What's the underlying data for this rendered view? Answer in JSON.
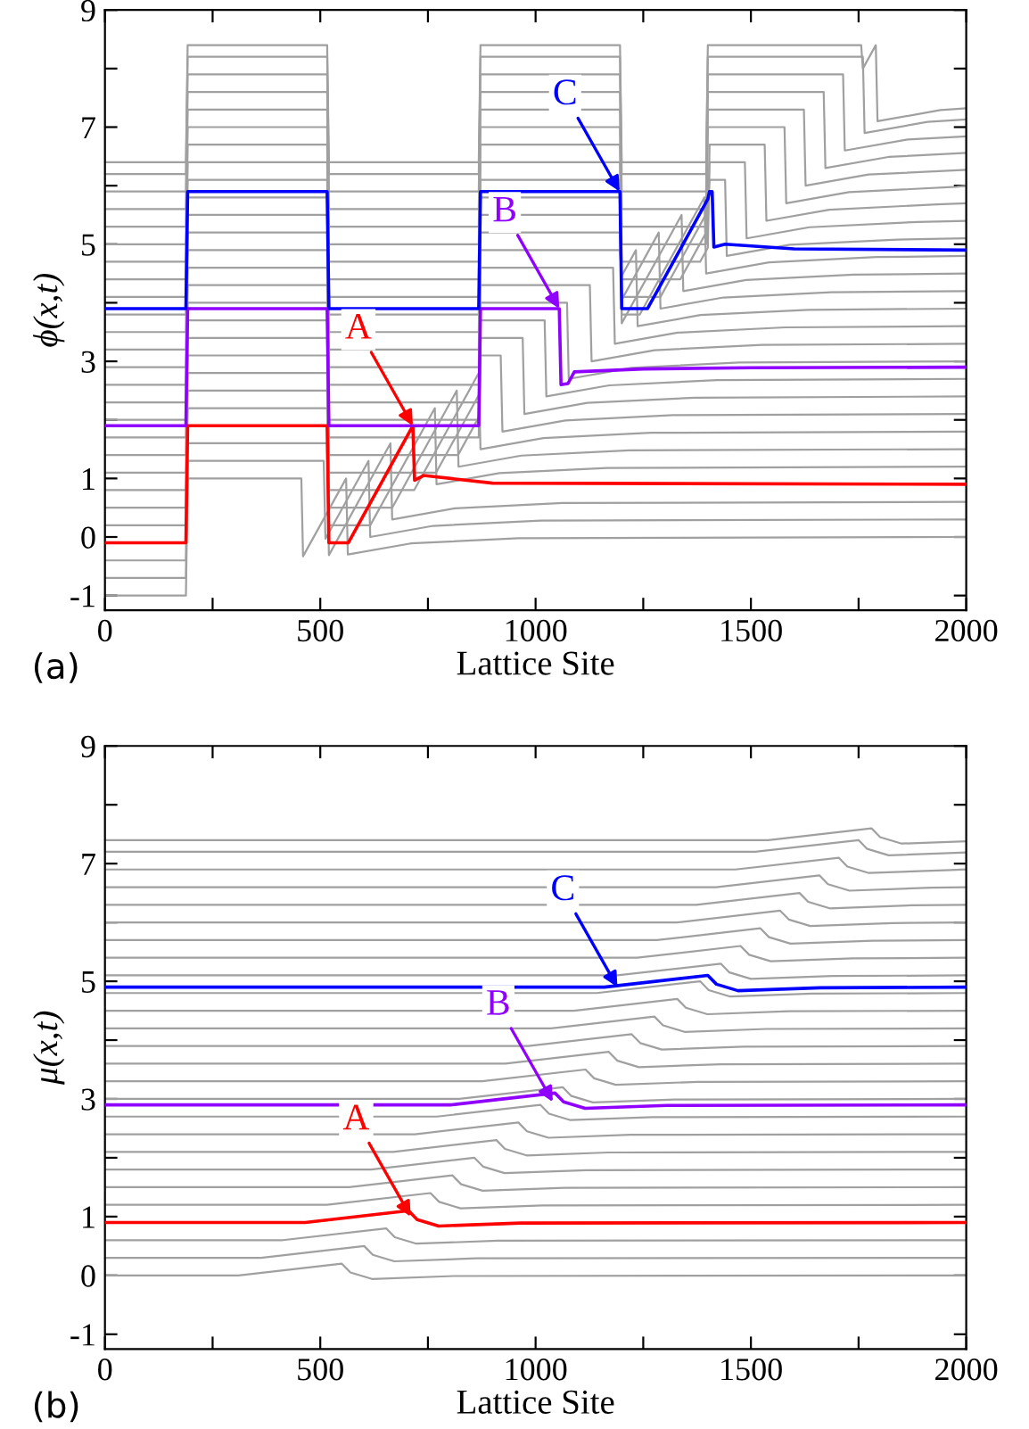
{
  "chart_data": [
    {
      "type": "line",
      "xlabel": "Lattice Site",
      "ylabel": "ϕ(x,t)",
      "xlim": [
        0,
        2000
      ],
      "ylim": [
        -1.25,
        9
      ],
      "xticks": [
        0,
        {
          "value": 250,
          "label": null
        },
        500,
        {
          "value": 750,
          "label": null
        },
        1000,
        {
          "value": 1250,
          "label": null
        },
        1500,
        {
          "value": 1750,
          "label": null
        },
        2000
      ],
      "yticks": [
        -1,
        0,
        1,
        {
          "value": 2,
          "label": null
        },
        3,
        {
          "value": 4,
          "label": null
        },
        5,
        {
          "value": 6,
          "label": null
        },
        7,
        {
          "value": 8,
          "label": null
        },
        9
      ],
      "grid": false,
      "legend": false,
      "annotations": [
        {
          "text": "A",
          "x": 715,
          "y": 1.9
        },
        {
          "text": "B",
          "x": 1055,
          "y": 3.9
        },
        {
          "text": "C",
          "x": 1195,
          "y": 5.9
        },
        "(a)"
      ],
      "series": [
        {
          "color": "#a0a0a0",
          "x": [
            0,
            188,
            192,
            456,
            460,
            560,
            564,
            710,
            960,
            2000
          ],
          "values": [
            -1,
            -1,
            1,
            1,
            -0.33,
            1,
            -0.3,
            -0.11,
            -0.02,
            0
          ]
        },
        {
          "color": "#a0a0a0",
          "x": [
            0,
            188,
            192,
            508,
            512,
            612,
            616,
            762,
            1012,
            2000
          ],
          "values": [
            -0.7,
            -0.7,
            1.3,
            1.3,
            -0.03,
            1.3,
            0,
            0.19,
            0.28,
            0.3
          ]
        },
        {
          "color": "#a0a0a0",
          "x": [
            0,
            188,
            192,
            516,
            520,
            663,
            667,
            813,
            1063,
            2000
          ],
          "values": [
            -0.4,
            -0.4,
            1.6,
            1.6,
            -0.31,
            1.6,
            0.3,
            0.49,
            0.58,
            0.6
          ]
        },
        {
          "color": "#a0a0a0",
          "x": [
            0,
            188,
            192,
            516,
            520,
            616,
            766,
            770,
            916,
            1166,
            2000
          ],
          "values": [
            0.2,
            0.2,
            2.2,
            2.2,
            0.2,
            0.2,
            2.2,
            0.9,
            1.09,
            1.18,
            1.2
          ]
        },
        {
          "color": "#a0a0a0",
          "x": [
            0,
            188,
            192,
            516,
            520,
            667,
            817,
            821,
            967,
            1217,
            2000
          ],
          "values": [
            0.5,
            0.5,
            2.5,
            2.5,
            0.5,
            0.5,
            2.5,
            1.2,
            1.39,
            1.48,
            1.5
          ]
        },
        {
          "color": "#a0a0a0",
          "x": [
            0,
            188,
            192,
            516,
            520,
            718,
            868,
            872,
            1018,
            1268,
            2000
          ],
          "values": [
            0.8,
            0.8,
            2.8,
            2.8,
            0.8,
            0.8,
            2.8,
            1.5,
            1.69,
            1.78,
            1.8
          ]
        },
        {
          "color": "#a0a0a0",
          "x": [
            0,
            188,
            192,
            516,
            520,
            769,
            870,
            872,
            919,
            923,
            1069,
            1319,
            2000
          ],
          "values": [
            1.1,
            1.1,
            3.1,
            3.1,
            1.1,
            1.1,
            2.45,
            3.1,
            3.1,
            1.8,
            1.99,
            2.08,
            2.1
          ]
        },
        {
          "color": "#a0a0a0",
          "x": [
            0,
            188,
            192,
            516,
            520,
            820,
            870,
            872,
            970,
            974,
            1120,
            1370,
            2000
          ],
          "values": [
            1.4,
            1.4,
            3.4,
            3.4,
            1.4,
            1.4,
            2.07,
            3.4,
            3.4,
            2.1,
            2.29,
            2.38,
            2.4
          ]
        },
        {
          "color": "#a0a0a0",
          "x": [
            0,
            188,
            192,
            516,
            520,
            868,
            872,
            1021,
            1025,
            1171,
            1421,
            2000
          ],
          "values": [
            1.7,
            1.7,
            3.7,
            3.7,
            1.7,
            1.7,
            3.7,
            3.7,
            2.4,
            2.59,
            2.68,
            2.7
          ]
        },
        {
          "color": "#a0a0a0",
          "x": [
            0,
            188,
            192,
            516,
            520,
            868,
            872,
            1073,
            1077,
            1223,
            1473,
            2000
          ],
          "values": [
            2,
            2,
            4,
            4,
            2,
            2,
            4,
            4,
            2.7,
            2.89,
            2.98,
            3
          ]
        },
        {
          "color": "#a0a0a0",
          "x": [
            0,
            188,
            192,
            516,
            520,
            868,
            872,
            1126,
            1130,
            1276,
            1526,
            2000
          ],
          "values": [
            2.3,
            2.3,
            4.3,
            4.3,
            2.3,
            2.3,
            4.3,
            4.3,
            3.0,
            3.19,
            3.28,
            3.3
          ]
        },
        {
          "color": "#a0a0a0",
          "x": [
            0,
            188,
            192,
            516,
            520,
            868,
            872,
            1180,
            1184,
            1330,
            1580,
            2000
          ],
          "values": [
            2.6,
            2.6,
            4.6,
            4.6,
            2.6,
            2.6,
            4.6,
            4.6,
            3.3,
            3.49,
            3.58,
            3.6
          ]
        },
        {
          "color": "#a0a0a0",
          "x": [
            0,
            188,
            192,
            516,
            520,
            868,
            872,
            1196,
            1200,
            1233,
            1237,
            1383,
            1633,
            2000
          ],
          "values": [
            2.9,
            2.9,
            4.9,
            4.9,
            2.9,
            2.9,
            4.9,
            4.9,
            4.46,
            4.9,
            3.6,
            3.79,
            3.88,
            3.9
          ]
        },
        {
          "color": "#a0a0a0",
          "x": [
            0,
            188,
            192,
            516,
            520,
            868,
            872,
            1196,
            1200,
            1286,
            1290,
            1436,
            1686,
            2000
          ],
          "values": [
            3.2,
            3.2,
            5.2,
            5.2,
            3.2,
            3.2,
            5.2,
            5.2,
            4.05,
            5.2,
            3.9,
            4.09,
            4.18,
            4.2
          ]
        },
        {
          "color": "#a0a0a0",
          "x": [
            0,
            188,
            192,
            516,
            520,
            868,
            872,
            1196,
            1200,
            1339,
            1343,
            1489,
            1739,
            2000
          ],
          "values": [
            3.5,
            3.5,
            5.5,
            5.5,
            3.5,
            3.5,
            5.5,
            5.5,
            3.65,
            5.5,
            4.2,
            4.39,
            4.48,
            4.5
          ]
        },
        {
          "color": "#a0a0a0",
          "x": [
            0,
            188,
            192,
            516,
            520,
            868,
            872,
            1196,
            1200,
            1242,
            1392,
            1396,
            1542,
            1792,
            2000
          ],
          "values": [
            3.8,
            3.8,
            5.8,
            5.8,
            3.8,
            3.8,
            5.8,
            5.8,
            3.8,
            3.8,
            5.8,
            4.5,
            4.69,
            4.78,
            4.8
          ]
        },
        {
          "color": "#a0a0a0",
          "x": [
            0,
            188,
            192,
            516,
            520,
            868,
            872,
            1196,
            1200,
            1290,
            1400,
            1404,
            1440,
            1444,
            1590,
            1840,
            2000
          ],
          "values": [
            4.1,
            4.1,
            6.1,
            6.1,
            4.1,
            4.1,
            6.1,
            6.1,
            4.1,
            4.1,
            5.57,
            6.1,
            6.1,
            4.8,
            4.99,
            5.08,
            5.1
          ]
        },
        {
          "color": "#a0a0a0",
          "x": [
            0,
            188,
            192,
            516,
            520,
            868,
            872,
            1196,
            1200,
            1336,
            1400,
            1404,
            1486,
            1490,
            1636,
            1886,
            2000
          ],
          "values": [
            4.4,
            4.4,
            6.4,
            6.4,
            4.4,
            4.4,
            6.4,
            6.4,
            4.4,
            4.4,
            5.25,
            6.4,
            6.4,
            5.1,
            5.29,
            5.38,
            5.4
          ]
        },
        {
          "color": "#a0a0a0",
          "x": [
            0,
            188,
            192,
            516,
            520,
            868,
            872,
            1196,
            1200,
            1382,
            1400,
            1404,
            1532,
            1536,
            1682,
            1932,
            2000
          ],
          "values": [
            4.7,
            4.7,
            6.7,
            6.7,
            4.7,
            4.7,
            6.7,
            6.7,
            4.7,
            4.7,
            4.94,
            6.7,
            6.7,
            5.4,
            5.59,
            5.68,
            5.7
          ]
        },
        {
          "color": "#a0a0a0",
          "x": [
            0,
            188,
            192,
            516,
            520,
            868,
            872,
            1196,
            1200,
            1396,
            1400,
            1578,
            1582,
            1728,
            1978,
            2000
          ],
          "values": [
            5,
            5,
            7,
            7,
            5,
            5,
            7,
            7,
            5,
            5,
            7,
            7,
            5.7,
            5.89,
            5.98,
            6
          ]
        },
        {
          "color": "#a0a0a0",
          "x": [
            0,
            188,
            192,
            516,
            520,
            868,
            872,
            1196,
            1200,
            1396,
            1400,
            1623,
            1627,
            1773,
            2000
          ],
          "values": [
            5.3,
            5.3,
            7.3,
            7.3,
            5.3,
            5.3,
            7.3,
            7.3,
            5.3,
            5.3,
            7.3,
            7.3,
            6.0,
            6.19,
            6.27
          ]
        },
        {
          "color": "#a0a0a0",
          "x": [
            0,
            188,
            192,
            516,
            520,
            868,
            872,
            1196,
            1200,
            1396,
            1400,
            1669,
            1673,
            1819,
            2000
          ],
          "values": [
            5.6,
            5.6,
            7.6,
            7.6,
            5.6,
            5.6,
            7.6,
            7.6,
            5.6,
            5.6,
            7.6,
            7.6,
            6.3,
            6.49,
            6.56
          ]
        },
        {
          "color": "#a0a0a0",
          "x": [
            0,
            188,
            192,
            516,
            520,
            868,
            872,
            1196,
            1200,
            1396,
            1400,
            1714,
            1718,
            1864,
            2000
          ],
          "values": [
            5.9,
            5.9,
            7.9,
            7.9,
            5.9,
            5.9,
            7.9,
            7.9,
            5.9,
            5.9,
            7.9,
            7.9,
            6.6,
            6.79,
            6.84
          ]
        },
        {
          "color": "#a0a0a0",
          "x": [
            0,
            188,
            192,
            516,
            520,
            868,
            872,
            1196,
            1200,
            1396,
            1400,
            1760,
            1764,
            1910,
            2000
          ],
          "values": [
            6.2,
            6.2,
            8.2,
            8.2,
            6.2,
            6.2,
            8.2,
            8.2,
            6.2,
            6.2,
            8.2,
            8.2,
            6.9,
            7.09,
            7.13
          ]
        },
        {
          "color": "#a0a0a0",
          "x": [
            0,
            188,
            192,
            516,
            520,
            868,
            872,
            1196,
            1200,
            1396,
            1400,
            1756,
            1760,
            1790,
            1794,
            1940,
            2000
          ],
          "values": [
            6.4,
            6.4,
            8.4,
            8.4,
            6.4,
            6.4,
            8.4,
            8.4,
            6.4,
            6.4,
            8.4,
            8.4,
            8.0,
            8.4,
            7.1,
            7.29,
            7.32
          ]
        },
        {
          "color": "#ff0000",
          "x": [
            0,
            188,
            192,
            516,
            520,
            565,
            715,
            719,
            740,
            900,
            2000
          ],
          "values": [
            -0.1,
            -0.1,
            1.9,
            1.9,
            -0.1,
            -0.1,
            1.9,
            0.97,
            1.05,
            0.92,
            0.9
          ]
        },
        {
          "color": "#9000ff",
          "x": [
            0,
            188,
            192,
            516,
            520,
            868,
            872,
            1055,
            1059,
            1075,
            1090,
            1250,
            1500,
            2000
          ],
          "values": [
            1.9,
            1.9,
            3.9,
            3.9,
            1.9,
            1.9,
            3.9,
            3.9,
            2.6,
            2.62,
            2.82,
            2.87,
            2.89,
            2.9
          ]
        },
        {
          "color": "#0000ff",
          "x": [
            0,
            188,
            192,
            516,
            520,
            868,
            872,
            1196,
            1200,
            1260,
            1400,
            1404,
            1410,
            1414,
            1440,
            1600,
            2000
          ],
          "values": [
            3.9,
            3.9,
            5.9,
            5.9,
            3.9,
            3.9,
            5.9,
            5.9,
            3.9,
            3.9,
            5.77,
            5.9,
            5.9,
            4.95,
            5.0,
            4.92,
            4.9
          ]
        }
      ]
    },
    {
      "type": "line",
      "xlabel": "Lattice Site",
      "ylabel": "μ(x,t)",
      "xlim": [
        0,
        2000
      ],
      "ylim": [
        -1.25,
        9
      ],
      "xticks": [
        0,
        {
          "value": 250,
          "label": null
        },
        500,
        {
          "value": 750,
          "label": null
        },
        1000,
        {
          "value": 1250,
          "label": null
        },
        1500,
        {
          "value": 1750,
          "label": null
        },
        2000
      ],
      "yticks": [
        -1,
        0,
        1,
        {
          "value": 2,
          "label": null
        },
        3,
        {
          "value": 4,
          "label": null
        },
        5,
        {
          "value": 6,
          "label": null
        },
        7,
        {
          "value": 8,
          "label": null
        },
        9
      ],
      "grid": false,
      "legend": false,
      "annotations": [
        {
          "text": "A",
          "x": 710,
          "y": 1.0
        },
        {
          "text": "B",
          "x": 1040,
          "y": 2.95
        },
        {
          "text": "C",
          "x": 1190,
          "y": 4.9
        },
        "(b)"
      ],
      "series": [
        {
          "color": "#a0a0a0",
          "x": [
            0,
            310,
            550,
            570,
            620,
            810,
            2000
          ],
          "values": [
            0,
            0,
            0.2,
            0.05,
            -0.06,
            -0.01,
            0
          ]
        },
        {
          "color": "#a0a0a0",
          "x": [
            0,
            362,
            602,
            622,
            672,
            862,
            2000
          ],
          "values": [
            0.3,
            0.3,
            0.5,
            0.35,
            0.24,
            0.29,
            0.3
          ]
        },
        {
          "color": "#a0a0a0",
          "x": [
            0,
            413,
            653,
            673,
            723,
            913,
            2000
          ],
          "values": [
            0.6,
            0.6,
            0.8,
            0.65,
            0.54,
            0.59,
            0.6
          ]
        },
        {
          "color": "#a0a0a0",
          "x": [
            0,
            516,
            756,
            776,
            826,
            1016,
            2000
          ],
          "values": [
            1.2,
            1.2,
            1.4,
            1.25,
            1.14,
            1.19,
            1.2
          ]
        },
        {
          "color": "#a0a0a0",
          "x": [
            0,
            567,
            807,
            827,
            877,
            1067,
            2000
          ],
          "values": [
            1.5,
            1.5,
            1.7,
            1.55,
            1.44,
            1.49,
            1.5
          ]
        },
        {
          "color": "#a0a0a0",
          "x": [
            0,
            618,
            858,
            878,
            928,
            1118,
            2000
          ],
          "values": [
            1.8,
            1.8,
            2.0,
            1.85,
            1.74,
            1.79,
            1.8
          ]
        },
        {
          "color": "#a0a0a0",
          "x": [
            0,
            669,
            909,
            929,
            979,
            1169,
            2000
          ],
          "values": [
            2.1,
            2.1,
            2.3,
            2.15,
            2.04,
            2.09,
            2.1
          ]
        },
        {
          "color": "#a0a0a0",
          "x": [
            0,
            720,
            960,
            980,
            1030,
            1220,
            2000
          ],
          "values": [
            2.4,
            2.4,
            2.6,
            2.45,
            2.34,
            2.39,
            2.4
          ]
        },
        {
          "color": "#a0a0a0",
          "x": [
            0,
            771,
            1011,
            1031,
            1081,
            1271,
            2000
          ],
          "values": [
            2.7,
            2.7,
            2.9,
            2.75,
            2.64,
            2.69,
            2.7
          ]
        },
        {
          "color": "#a0a0a0",
          "x": [
            0,
            823,
            1063,
            1083,
            1133,
            1323,
            2000
          ],
          "values": [
            3.0,
            3.0,
            3.2,
            3.05,
            2.94,
            2.99,
            3.0
          ]
        },
        {
          "color": "#a0a0a0",
          "x": [
            0,
            876,
            1116,
            1136,
            1186,
            1376,
            2000
          ],
          "values": [
            3.3,
            3.3,
            3.5,
            3.35,
            3.24,
            3.29,
            3.3
          ]
        },
        {
          "color": "#a0a0a0",
          "x": [
            0,
            930,
            1170,
            1190,
            1240,
            1430,
            2000
          ],
          "values": [
            3.6,
            3.6,
            3.8,
            3.65,
            3.54,
            3.59,
            3.6
          ]
        },
        {
          "color": "#a0a0a0",
          "x": [
            0,
            983,
            1223,
            1243,
            1293,
            1483,
            2000
          ],
          "values": [
            3.9,
            3.9,
            4.1,
            3.95,
            3.84,
            3.89,
            3.9
          ]
        },
        {
          "color": "#a0a0a0",
          "x": [
            0,
            1036,
            1276,
            1296,
            1346,
            1536,
            2000
          ],
          "values": [
            4.2,
            4.2,
            4.4,
            4.25,
            4.14,
            4.19,
            4.2
          ]
        },
        {
          "color": "#a0a0a0",
          "x": [
            0,
            1089,
            1329,
            1349,
            1399,
            1589,
            2000
          ],
          "values": [
            4.5,
            4.5,
            4.7,
            4.55,
            4.44,
            4.49,
            4.5
          ]
        },
        {
          "color": "#a0a0a0",
          "x": [
            0,
            1142,
            1382,
            1402,
            1452,
            1642,
            2000
          ],
          "values": [
            4.8,
            4.8,
            5.0,
            4.85,
            4.74,
            4.79,
            4.8
          ]
        },
        {
          "color": "#a0a0a0",
          "x": [
            0,
            1190,
            1430,
            1450,
            1500,
            1690,
            2000
          ],
          "values": [
            5.1,
            5.1,
            5.3,
            5.15,
            5.04,
            5.09,
            5.1
          ]
        },
        {
          "color": "#a0a0a0",
          "x": [
            0,
            1236,
            1476,
            1496,
            1546,
            1736,
            2000
          ],
          "values": [
            5.4,
            5.4,
            5.6,
            5.45,
            5.34,
            5.39,
            5.4
          ]
        },
        {
          "color": "#a0a0a0",
          "x": [
            0,
            1282,
            1522,
            1542,
            1592,
            1782,
            2000
          ],
          "values": [
            5.7,
            5.7,
            5.9,
            5.75,
            5.64,
            5.69,
            5.7
          ]
        },
        {
          "color": "#a0a0a0",
          "x": [
            0,
            1328,
            1568,
            1588,
            1638,
            1828,
            2000
          ],
          "values": [
            6.0,
            6.0,
            6.2,
            6.05,
            5.94,
            5.99,
            6.0
          ]
        },
        {
          "color": "#a0a0a0",
          "x": [
            0,
            1373,
            1613,
            1633,
            1683,
            1873,
            2000
          ],
          "values": [
            6.3,
            6.3,
            6.5,
            6.35,
            6.24,
            6.29,
            6.3
          ]
        },
        {
          "color": "#a0a0a0",
          "x": [
            0,
            1419,
            1659,
            1679,
            1729,
            1919,
            2000
          ],
          "values": [
            6.6,
            6.6,
            6.8,
            6.65,
            6.54,
            6.59,
            6.6
          ]
        },
        {
          "color": "#a0a0a0",
          "x": [
            0,
            1464,
            1704,
            1724,
            1774,
            1964,
            2000
          ],
          "values": [
            6.9,
            6.9,
            7.1,
            6.95,
            6.84,
            6.89,
            6.9
          ]
        },
        {
          "color": "#a0a0a0",
          "x": [
            0,
            1510,
            1750,
            1770,
            1820,
            2000
          ],
          "values": [
            7.2,
            7.2,
            7.4,
            7.25,
            7.14,
            7.19
          ]
        },
        {
          "color": "#a0a0a0",
          "x": [
            0,
            1540,
            1780,
            1800,
            1850,
            2000
          ],
          "values": [
            7.4,
            7.4,
            7.6,
            7.45,
            7.34,
            7.38
          ]
        },
        {
          "color": "#ff0000",
          "x": [
            0,
            465,
            705,
            725,
            775,
            965,
            2000
          ],
          "values": [
            0.9,
            0.9,
            1.1,
            0.95,
            0.84,
            0.89,
            0.9
          ]
        },
        {
          "color": "#9000ff",
          "x": [
            0,
            805,
            1045,
            1065,
            1115,
            1305,
            2000
          ],
          "values": [
            2.9,
            2.9,
            3.1,
            2.95,
            2.84,
            2.89,
            2.9
          ]
        },
        {
          "color": "#0000ff",
          "x": [
            0,
            1160,
            1400,
            1420,
            1470,
            1660,
            2000
          ],
          "values": [
            4.9,
            4.9,
            5.1,
            4.95,
            4.84,
            4.89,
            4.9
          ]
        }
      ]
    }
  ]
}
